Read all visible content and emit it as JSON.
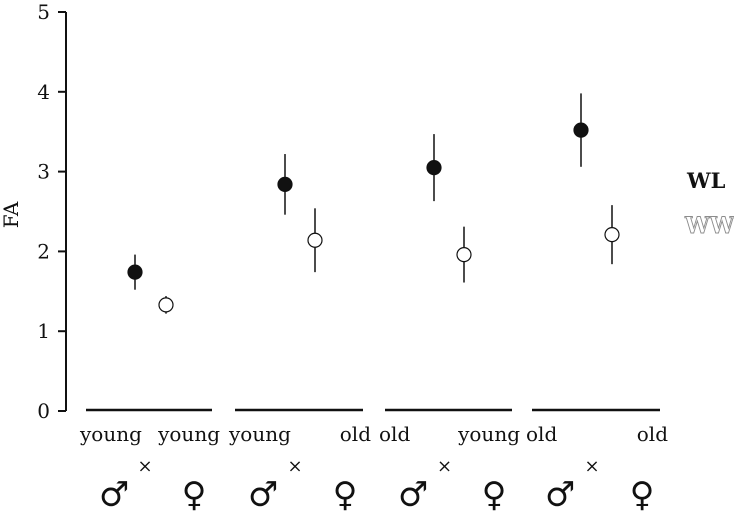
{
  "chart_data": {
    "type": "scatter",
    "ylabel": "FA",
    "ylim": [
      0,
      5
    ],
    "yticks": [
      0,
      1,
      2,
      3,
      4,
      5
    ],
    "groups": [
      {
        "male": "young",
        "female": "young"
      },
      {
        "male": "young",
        "female": "old"
      },
      {
        "male": "old",
        "female": "young"
      },
      {
        "male": "old",
        "female": "old"
      }
    ],
    "cross_symbol": "×",
    "male_symbol": "♂",
    "female_symbol": "♀",
    "series": [
      {
        "name": "WL",
        "marker": "filled-circle",
        "color": "#111111",
        "values": [
          1.74,
          2.84,
          3.05,
          3.52
        ],
        "err_low": [
          1.52,
          2.46,
          2.63,
          3.06
        ],
        "err_high": [
          1.96,
          3.22,
          3.47,
          3.98
        ]
      },
      {
        "name": "WW",
        "marker": "open-circle",
        "color": "#111111",
        "legend_color": "#9a9a9a",
        "values": [
          1.33,
          2.14,
          1.96,
          2.21
        ],
        "err_low": [
          1.22,
          1.74,
          1.61,
          1.84
        ],
        "err_high": [
          1.44,
          2.54,
          2.31,
          2.58
        ]
      }
    ],
    "legend_position": "right",
    "grid": false
  }
}
